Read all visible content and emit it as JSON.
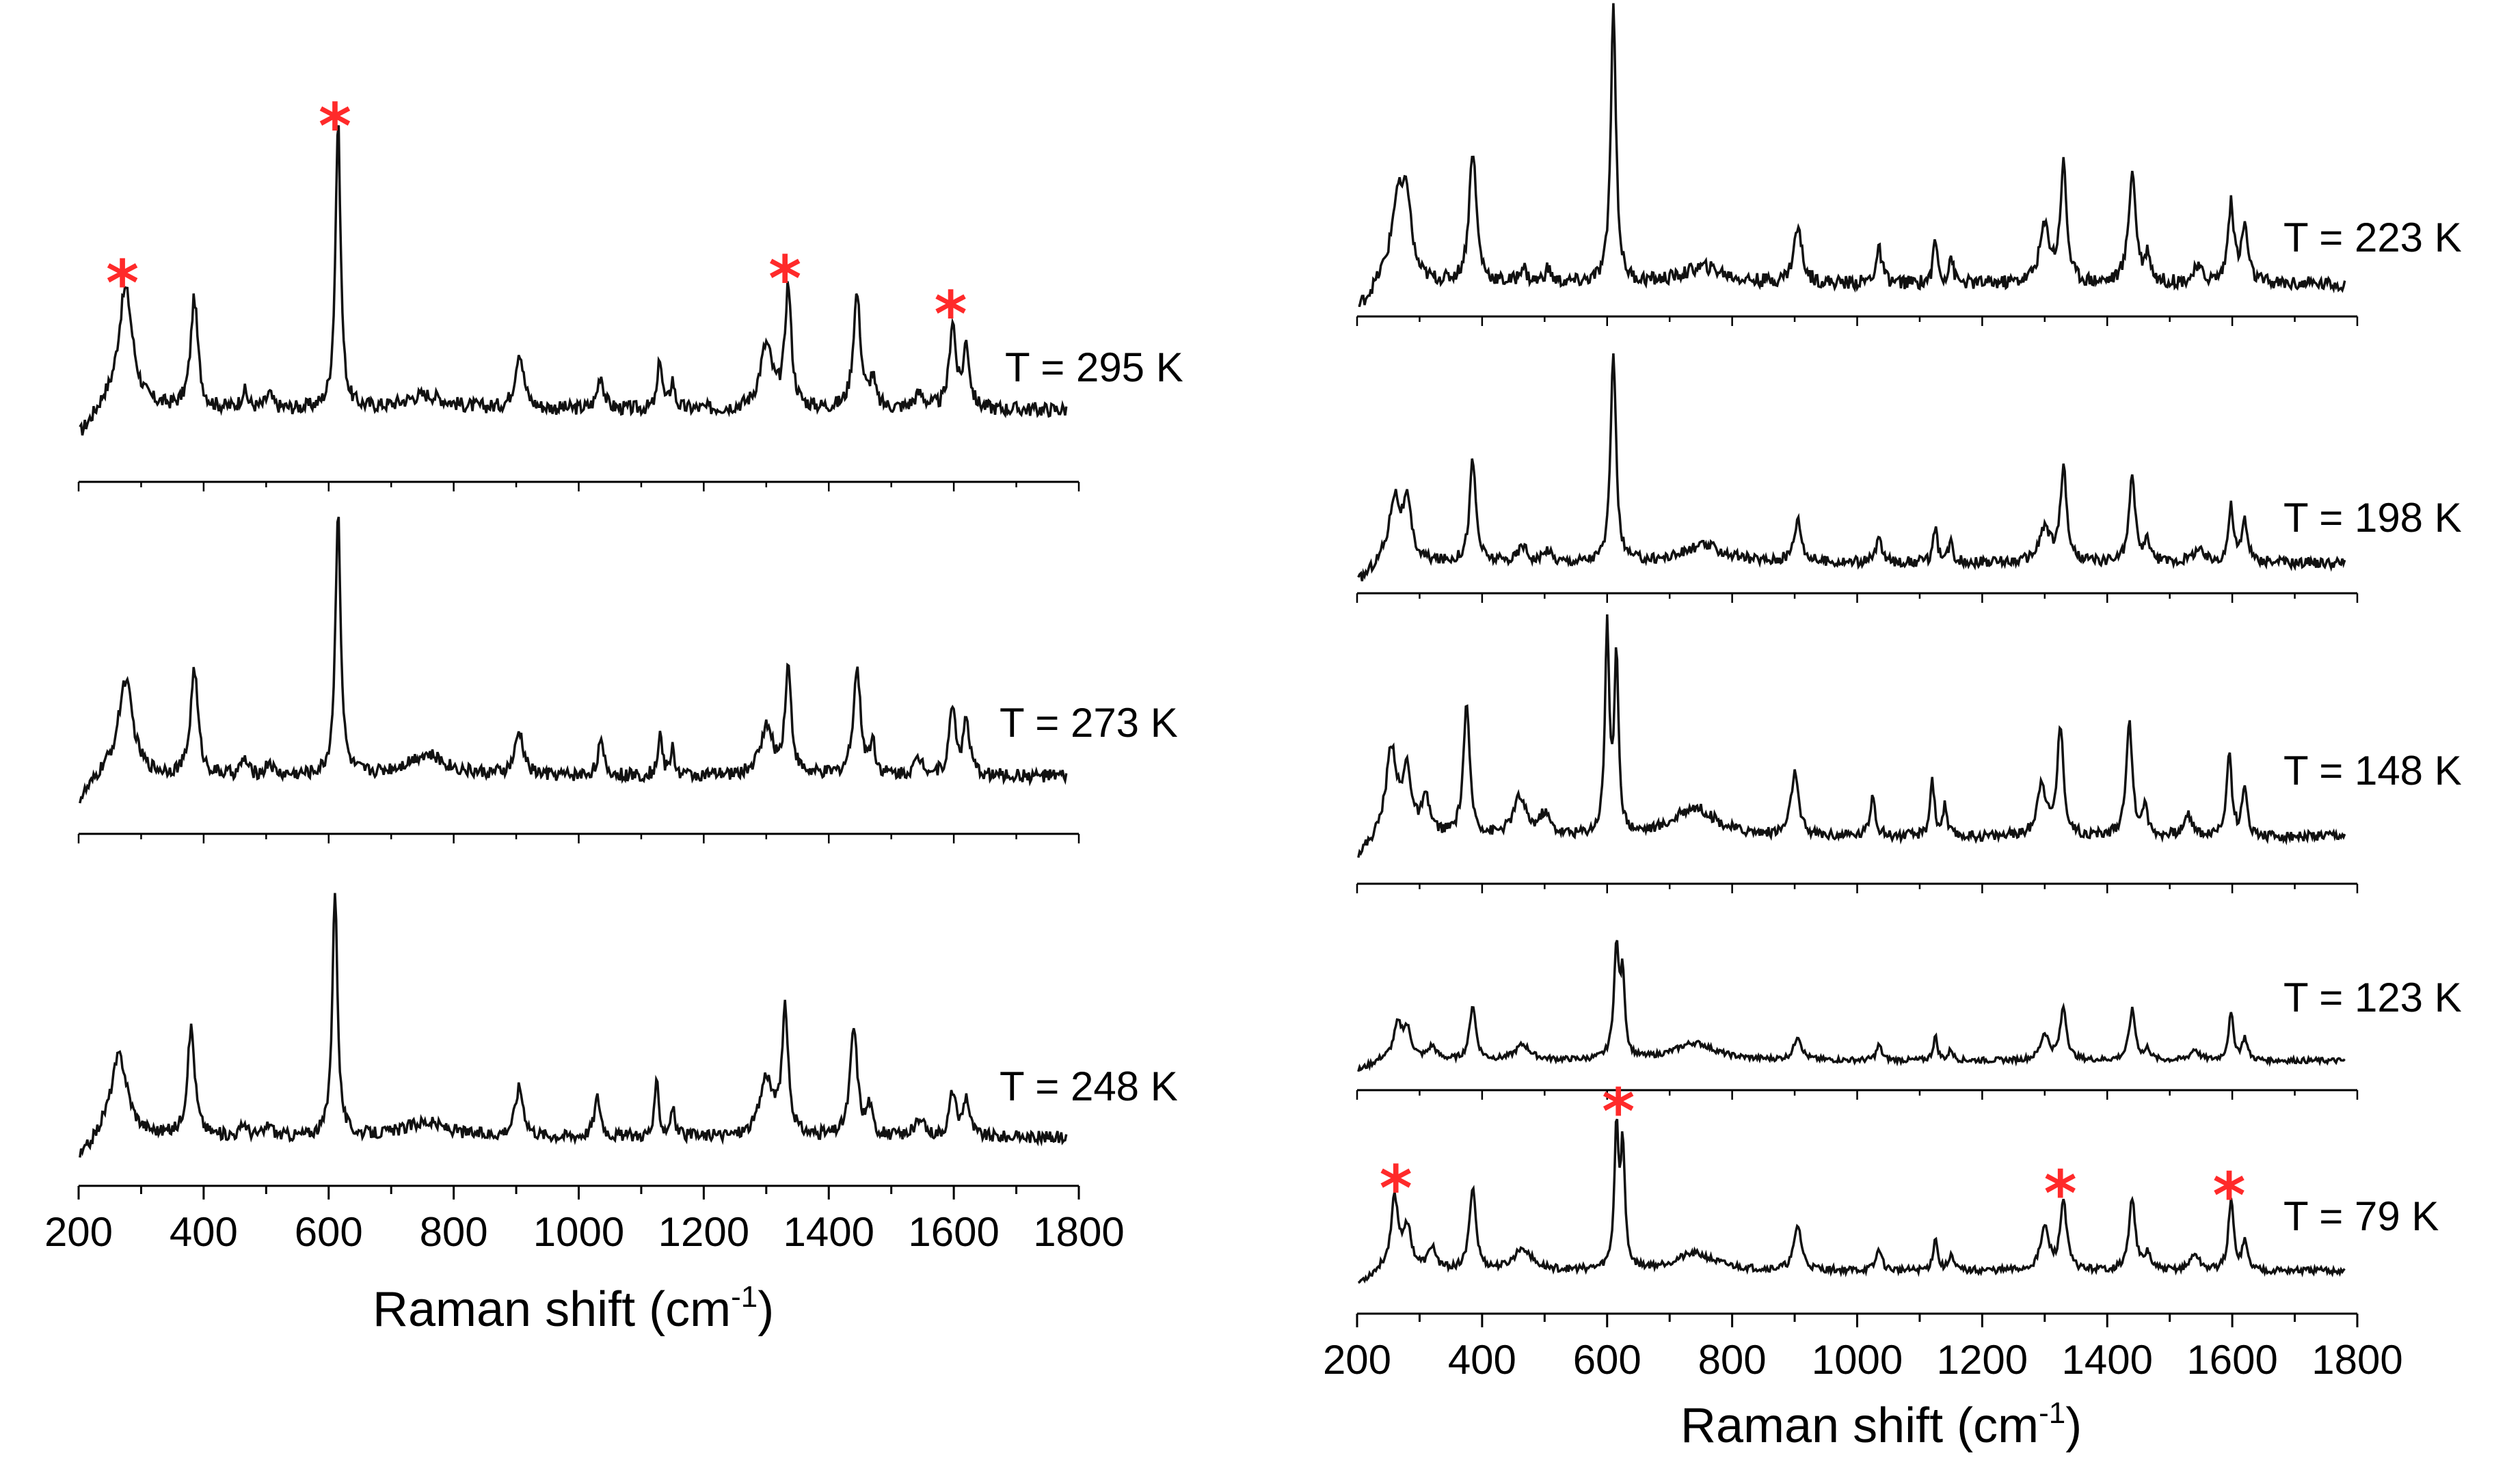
{
  "colors": {
    "trace": "#111111",
    "axis": "#000000",
    "marker": "#ff2a2a"
  },
  "chart_data": [
    {
      "type": "line",
      "panel": "left",
      "xlabel": "Raman shift (cm",
      "xlabel_sup": "-1",
      "xlabel_tail": ")",
      "xlim": [
        200,
        1800
      ],
      "xticks": [
        "200",
        "400",
        "600",
        "800",
        "1000",
        "1200",
        "1400",
        "1600",
        "1800"
      ],
      "xtick_values": [
        200,
        400,
        600,
        800,
        1000,
        1200,
        1400,
        1600,
        1800
      ],
      "series": [
        {
          "name": "T = 295 K",
          "baseline": 0.12,
          "peaks": [
            [
              275,
              0.42,
              14
            ],
            [
              385,
              0.38,
              7
            ],
            [
              465,
              0.06,
              6
            ],
            [
              505,
              0.05,
              6
            ],
            [
              615,
              1.0,
              5
            ],
            [
              755,
              0.05,
              40
            ],
            [
              905,
              0.2,
              8
            ],
            [
              1035,
              0.12,
              6
            ],
            [
              1130,
              0.18,
              4
            ],
            [
              1150,
              0.1,
              4
            ],
            [
              1300,
              0.22,
              12
            ],
            [
              1335,
              0.42,
              6
            ],
            [
              1445,
              0.4,
              7
            ],
            [
              1470,
              0.1,
              5
            ],
            [
              1545,
              0.05,
              10
            ],
            [
              1598,
              0.3,
              6
            ],
            [
              1620,
              0.22,
              6
            ]
          ],
          "markers": [
            {
              "x": 270,
              "symbol": "*"
            },
            {
              "x": 610,
              "symbol": "*"
            },
            {
              "x": 1330,
              "symbol": "*"
            },
            {
              "x": 1595,
              "symbol": "*"
            }
          ]
        },
        {
          "name": "T = 273 K",
          "baseline": 0.1,
          "peaks": [
            [
              275,
              0.36,
              14
            ],
            [
              385,
              0.4,
              7
            ],
            [
              465,
              0.06,
              6
            ],
            [
              505,
              0.05,
              6
            ],
            [
              615,
              1.0,
              5
            ],
            [
              755,
              0.08,
              40
            ],
            [
              905,
              0.16,
              8
            ],
            [
              1035,
              0.12,
              6
            ],
            [
              1130,
              0.16,
              4
            ],
            [
              1150,
              0.1,
              4
            ],
            [
              1300,
              0.18,
              12
            ],
            [
              1335,
              0.4,
              6
            ],
            [
              1445,
              0.4,
              7
            ],
            [
              1470,
              0.12,
              5
            ],
            [
              1545,
              0.06,
              10
            ],
            [
              1598,
              0.26,
              6
            ],
            [
              1620,
              0.2,
              6
            ]
          ],
          "markers": []
        },
        {
          "name": "T = 248 K",
          "baseline": 0.1,
          "peaks": [
            [
              265,
              0.33,
              16
            ],
            [
              380,
              0.44,
              7
            ],
            [
              465,
              0.05,
              6
            ],
            [
              505,
              0.05,
              6
            ],
            [
              610,
              1.0,
              5
            ],
            [
              755,
              0.06,
              40
            ],
            [
              905,
              0.2,
              8
            ],
            [
              1030,
              0.16,
              6
            ],
            [
              1125,
              0.22,
              4
            ],
            [
              1150,
              0.12,
              4
            ],
            [
              1300,
              0.24,
              12
            ],
            [
              1330,
              0.5,
              6
            ],
            [
              1440,
              0.44,
              7
            ],
            [
              1465,
              0.12,
              5
            ],
            [
              1545,
              0.06,
              10
            ],
            [
              1598,
              0.18,
              6
            ],
            [
              1620,
              0.16,
              6
            ]
          ],
          "markers": []
        }
      ],
      "legend": "temperature label right of each trace"
    },
    {
      "type": "line",
      "panel": "right",
      "xlabel": "Raman shift (cm",
      "xlabel_sup": "-1",
      "xlabel_tail": ")",
      "xlim": [
        200,
        1800
      ],
      "xticks": [
        "200",
        "400",
        "600",
        "800",
        "1000",
        "1200",
        "1400",
        "1600",
        "1800"
      ],
      "xtick_values": [
        200,
        400,
        600,
        800,
        1000,
        1200,
        1400,
        1600,
        1800
      ],
      "series": [
        {
          "name": "T = 223 K",
          "baseline": 0.06,
          "peaks": [
            [
              265,
              0.3,
              12
            ],
            [
              280,
              0.25,
              8
            ],
            [
              385,
              0.48,
              7
            ],
            [
              465,
              0.06,
              6
            ],
            [
              505,
              0.05,
              6
            ],
            [
              610,
              1.0,
              5
            ],
            [
              755,
              0.06,
              40
            ],
            [
              905,
              0.2,
              8
            ],
            [
              1035,
              0.12,
              6
            ],
            [
              1125,
              0.16,
              4
            ],
            [
              1150,
              0.1,
              4
            ],
            [
              1300,
              0.2,
              10
            ],
            [
              1330,
              0.42,
              6
            ],
            [
              1440,
              0.4,
              7
            ],
            [
              1465,
              0.1,
              5
            ],
            [
              1545,
              0.05,
              10
            ],
            [
              1598,
              0.28,
              6
            ],
            [
              1620,
              0.2,
              6
            ]
          ],
          "markers": []
        },
        {
          "name": "T = 198 K",
          "baseline": 0.06,
          "peaks": [
            [
              260,
              0.3,
              10
            ],
            [
              280,
              0.26,
              8
            ],
            [
              385,
              0.48,
              6
            ],
            [
              465,
              0.08,
              8
            ],
            [
              505,
              0.06,
              6
            ],
            [
              610,
              1.0,
              5
            ],
            [
              755,
              0.08,
              40
            ],
            [
              905,
              0.2,
              7
            ],
            [
              1035,
              0.12,
              5
            ],
            [
              1125,
              0.16,
              4
            ],
            [
              1150,
              0.1,
              4
            ],
            [
              1300,
              0.16,
              10
            ],
            [
              1330,
              0.44,
              6
            ],
            [
              1440,
              0.4,
              6
            ],
            [
              1465,
              0.1,
              5
            ],
            [
              1545,
              0.06,
              10
            ],
            [
              1598,
              0.26,
              5
            ],
            [
              1620,
              0.2,
              5
            ]
          ],
          "markers": []
        },
        {
          "name": "T = 148 K",
          "baseline": 0.1,
          "peaks": [
            [
              255,
              0.42,
              10
            ],
            [
              280,
              0.3,
              8
            ],
            [
              310,
              0.16,
              8
            ],
            [
              375,
              0.62,
              6
            ],
            [
              460,
              0.18,
              12
            ],
            [
              500,
              0.1,
              10
            ],
            [
              600,
              1.0,
              4
            ],
            [
              615,
              0.85,
              4
            ],
            [
              740,
              0.14,
              40
            ],
            [
              900,
              0.3,
              7
            ],
            [
              1025,
              0.2,
              5
            ],
            [
              1120,
              0.28,
              4
            ],
            [
              1140,
              0.14,
              4
            ],
            [
              1295,
              0.26,
              8
            ],
            [
              1325,
              0.52,
              6
            ],
            [
              1435,
              0.54,
              6
            ],
            [
              1460,
              0.14,
              5
            ],
            [
              1530,
              0.1,
              8
            ],
            [
              1595,
              0.4,
              5
            ],
            [
              1620,
              0.22,
              5
            ]
          ],
          "markers": []
        },
        {
          "name": "T = 123 K",
          "baseline": 0.1,
          "peaks": [
            [
              265,
              0.3,
              8
            ],
            [
              280,
              0.26,
              8
            ],
            [
              320,
              0.12,
              8
            ],
            [
              385,
              0.5,
              6
            ],
            [
              465,
              0.14,
              14
            ],
            [
              615,
              1.0,
              5
            ],
            [
              625,
              0.7,
              4
            ],
            [
              740,
              0.16,
              40
            ],
            [
              905,
              0.22,
              7
            ],
            [
              1035,
              0.14,
              5
            ],
            [
              1125,
              0.22,
              4
            ],
            [
              1150,
              0.1,
              4
            ],
            [
              1300,
              0.24,
              8
            ],
            [
              1330,
              0.48,
              6
            ],
            [
              1440,
              0.46,
              6
            ],
            [
              1465,
              0.1,
              5
            ],
            [
              1540,
              0.1,
              8
            ],
            [
              1598,
              0.42,
              5
            ],
            [
              1620,
              0.2,
              5
            ]
          ],
          "markers": []
        },
        {
          "name": "T = 79 K",
          "baseline": 0.1,
          "peaks": [
            [
              260,
              0.5,
              7
            ],
            [
              280,
              0.3,
              8
            ],
            [
              320,
              0.16,
              7
            ],
            [
              385,
              0.6,
              6
            ],
            [
              465,
              0.16,
              16
            ],
            [
              615,
              1.0,
              4
            ],
            [
              625,
              0.85,
              4
            ],
            [
              740,
              0.12,
              40
            ],
            [
              905,
              0.32,
              7
            ],
            [
              1035,
              0.16,
              5
            ],
            [
              1125,
              0.24,
              4
            ],
            [
              1150,
              0.12,
              4
            ],
            [
              1300,
              0.3,
              8
            ],
            [
              1330,
              0.5,
              6
            ],
            [
              1440,
              0.52,
              6
            ],
            [
              1465,
              0.12,
              5
            ],
            [
              1540,
              0.12,
              8
            ],
            [
              1598,
              0.5,
              5
            ],
            [
              1620,
              0.2,
              5
            ]
          ],
          "markers": [
            {
              "x": 262,
              "symbol": "*"
            },
            {
              "x": 618,
              "symbol": "*"
            },
            {
              "x": 1325,
              "symbol": "*"
            },
            {
              "x": 1595,
              "symbol": "*"
            }
          ]
        }
      ],
      "legend": "temperature label right of each trace"
    }
  ]
}
